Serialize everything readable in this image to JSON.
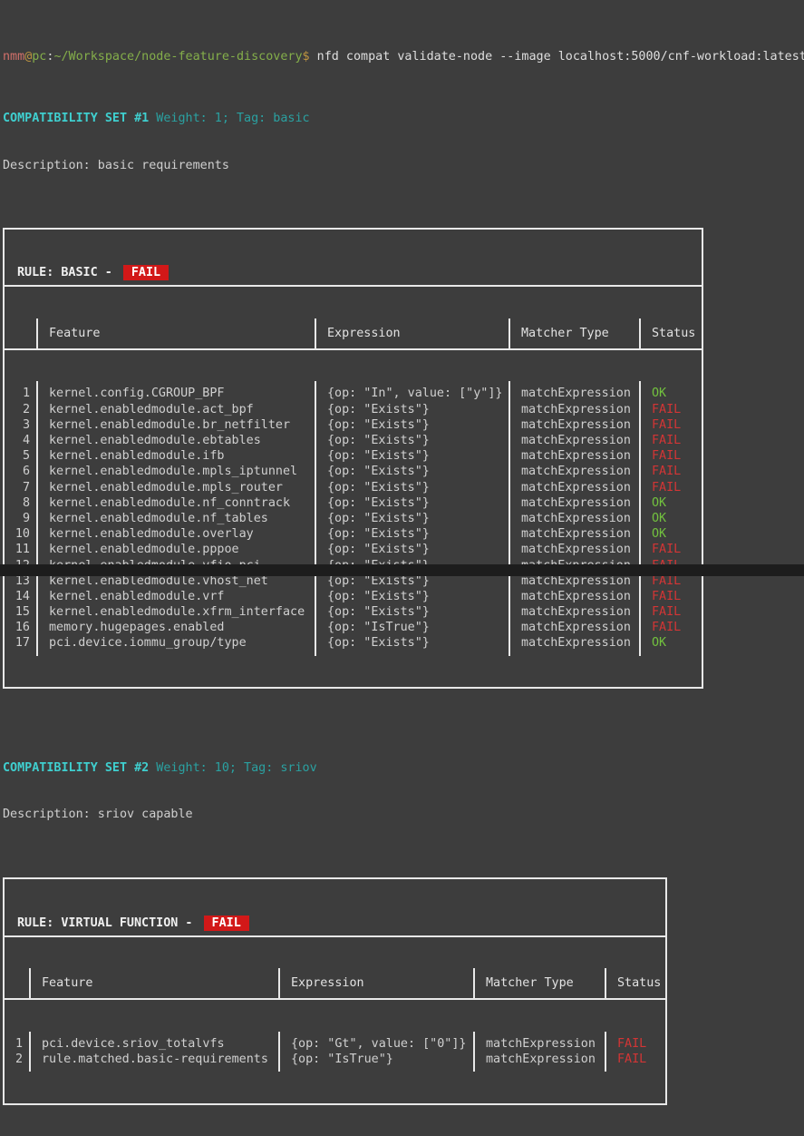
{
  "colors": {
    "background": "#3d3d3d",
    "ok_green": "#72c13e",
    "fail_red": "#d23535",
    "badge_red_bg": "#d21818",
    "cyan_title": "#3fcfcf",
    "teal_meta": "#2aa1a1",
    "border_white": "#e8e8e8"
  },
  "prompt": {
    "user": "nmm",
    "at": "@",
    "host": "pc",
    "colon": ":",
    "path": "~/Workspace/node-feature-discovery",
    "dollar": "$",
    "command": " nfd compat validate-node --image localhost:5000/cnf-workload:latest"
  },
  "sets": [
    {
      "title": "COMPATIBILITY SET #1",
      "meta": " Weight: 1; Tag: basic",
      "description": "Description: basic requirements",
      "rule_label": "RULE: BASIC - ",
      "rule_status": "FAIL",
      "columns": {
        "num": "",
        "feature": "Feature",
        "expression": "Expression",
        "matcher": "Matcher Type",
        "status": "Status"
      },
      "rows": [
        {
          "num": "1",
          "feature": "kernel.config.CGROUP_BPF",
          "expression": "{op: \"In\", value: [\"y\"]}",
          "matcher": "matchExpression",
          "status": "OK"
        },
        {
          "num": "2",
          "feature": "kernel.enabledmodule.act_bpf",
          "expression": "{op: \"Exists\"}",
          "matcher": "matchExpression",
          "status": "FAIL"
        },
        {
          "num": "3",
          "feature": "kernel.enabledmodule.br_netfilter",
          "expression": "{op: \"Exists\"}",
          "matcher": "matchExpression",
          "status": "FAIL"
        },
        {
          "num": "4",
          "feature": "kernel.enabledmodule.ebtables",
          "expression": "{op: \"Exists\"}",
          "matcher": "matchExpression",
          "status": "FAIL"
        },
        {
          "num": "5",
          "feature": "kernel.enabledmodule.ifb",
          "expression": "{op: \"Exists\"}",
          "matcher": "matchExpression",
          "status": "FAIL"
        },
        {
          "num": "6",
          "feature": "kernel.enabledmodule.mpls_iptunnel",
          "expression": "{op: \"Exists\"}",
          "matcher": "matchExpression",
          "status": "FAIL"
        },
        {
          "num": "7",
          "feature": "kernel.enabledmodule.mpls_router",
          "expression": "{op: \"Exists\"}",
          "matcher": "matchExpression",
          "status": "FAIL"
        },
        {
          "num": "8",
          "feature": "kernel.enabledmodule.nf_conntrack",
          "expression": "{op: \"Exists\"}",
          "matcher": "matchExpression",
          "status": "OK"
        },
        {
          "num": "9",
          "feature": "kernel.enabledmodule.nf_tables",
          "expression": "{op: \"Exists\"}",
          "matcher": "matchExpression",
          "status": "OK"
        },
        {
          "num": "10",
          "feature": "kernel.enabledmodule.overlay",
          "expression": "{op: \"Exists\"}",
          "matcher": "matchExpression",
          "status": "OK"
        },
        {
          "num": "11",
          "feature": "kernel.enabledmodule.pppoe",
          "expression": "{op: \"Exists\"}",
          "matcher": "matchExpression",
          "status": "FAIL"
        },
        {
          "num": "12",
          "feature": "kernel.enabledmodule.vfio-pci",
          "expression": "{op: \"Exists\"}",
          "matcher": "matchExpression",
          "status": "FAIL"
        },
        {
          "num": "13",
          "feature": "kernel.enabledmodule.vhost_net",
          "expression": "{op: \"Exists\"}",
          "matcher": "matchExpression",
          "status": "FAIL"
        },
        {
          "num": "14",
          "feature": "kernel.enabledmodule.vrf",
          "expression": "{op: \"Exists\"}",
          "matcher": "matchExpression",
          "status": "FAIL"
        },
        {
          "num": "15",
          "feature": "kernel.enabledmodule.xfrm_interface",
          "expression": "{op: \"Exists\"}",
          "matcher": "matchExpression",
          "status": "FAIL"
        },
        {
          "num": "16",
          "feature": "memory.hugepages.enabled",
          "expression": "{op: \"IsTrue\"}",
          "matcher": "matchExpression",
          "status": "FAIL"
        },
        {
          "num": "17",
          "feature": "pci.device.iommu_group/type",
          "expression": "{op: \"Exists\"}",
          "matcher": "matchExpression",
          "status": "OK"
        }
      ]
    },
    {
      "title": "COMPATIBILITY SET #2",
      "meta": " Weight: 10; Tag: sriov",
      "description": "Description: sriov capable",
      "rule_label": "RULE: VIRTUAL FUNCTION - ",
      "rule_status": "FAIL",
      "columns": {
        "num": "",
        "feature": "Feature",
        "expression": "Expression",
        "matcher": "Matcher Type",
        "status": "Status"
      },
      "rows": [
        {
          "num": "1",
          "feature": "pci.device.sriov_totalvfs",
          "expression": "{op: \"Gt\", value: [\"0\"]}",
          "matcher": "matchExpression",
          "status": "FAIL"
        },
        {
          "num": "2",
          "feature": "rule.matched.basic-requirements",
          "expression": "{op: \"IsTrue\"}",
          "matcher": "matchExpression",
          "status": "FAIL"
        }
      ]
    }
  ]
}
